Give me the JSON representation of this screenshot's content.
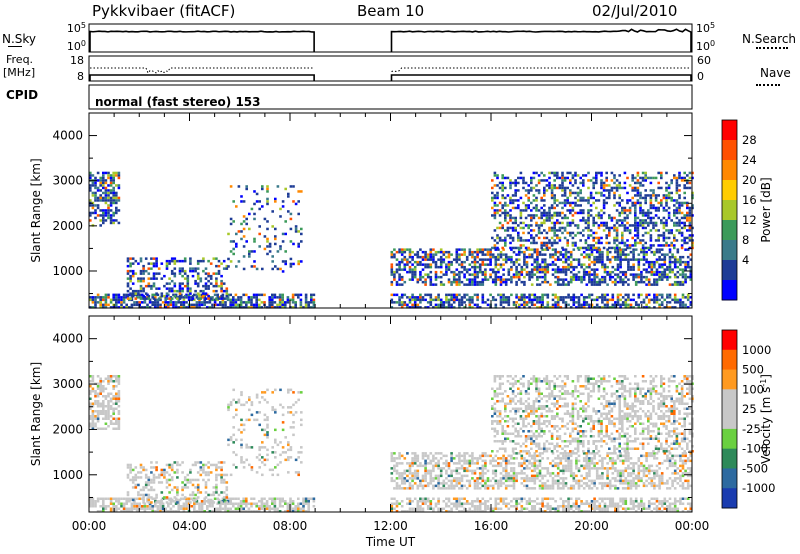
{
  "header": {
    "station": "Pykkvibaer (fitACF)",
    "beam": "Beam 10",
    "date": "02/Jul/2010"
  },
  "left_labels": {
    "nsky": "N.Sky",
    "freq_line1": "Freq.",
    "freq_line2": "[MHz]",
    "cpid": "CPID"
  },
  "right_labels": {
    "nsearch": "N.Search",
    "nave": "Nave"
  },
  "cpid_text": "normal (fast stereo) 153",
  "chart_data": [
    {
      "type": "line",
      "name": "noise-panel",
      "left_ticks": [
        "10^5",
        "10^0"
      ],
      "right_ticks": [
        "10^5",
        "10^0"
      ],
      "segments": [
        {
          "x_start_hours": 0.0,
          "x_end_hours": 9.0
        },
        {
          "x_start_hours": 12.0,
          "x_end_hours": 24.0
        }
      ]
    },
    {
      "type": "line",
      "name": "frequency-nave-panel",
      "left_ticks": [
        "18",
        "8"
      ],
      "right_ticks": [
        "60",
        "0"
      ],
      "segments": [
        {
          "x_start_hours": 0.0,
          "x_end_hours": 9.0
        },
        {
          "x_start_hours": 12.0,
          "x_end_hours": 24.0
        }
      ]
    },
    {
      "type": "heatmap",
      "name": "power-panel",
      "ylabel": "Slant Range [km]",
      "ylim": [
        180,
        4500
      ],
      "y_ticks": [
        "4000",
        "3000",
        "2000",
        "1000"
      ],
      "colorbar_label": "Power [dB]",
      "colorbar_ticks": [
        "28",
        "24",
        "20",
        "16",
        "12",
        "8",
        "4"
      ],
      "colorbar_colors": [
        "#0000ff",
        "#1e3c96",
        "#3a7a8a",
        "#3c9a5a",
        "#a8c82a",
        "#ffcc00",
        "#ff8800",
        "#ff5000",
        "#ff0000"
      ],
      "scatter_regions": [
        {
          "x": [
            0.0,
            1.2
          ],
          "y": [
            2000,
            3200
          ],
          "density": 0.6
        },
        {
          "x": [
            0.0,
            9.0
          ],
          "y": [
            200,
            500
          ],
          "density": 0.7
        },
        {
          "x": [
            1.5,
            5.5
          ],
          "y": [
            400,
            1300
          ],
          "density": 0.4
        },
        {
          "x": [
            5.5,
            8.5
          ],
          "y": [
            1000,
            2900
          ],
          "density": 0.15
        },
        {
          "x": [
            12.0,
            24.0
          ],
          "y": [
            200,
            500
          ],
          "density": 0.6
        },
        {
          "x": [
            12.0,
            24.0
          ],
          "y": [
            700,
            1500
          ],
          "density": 0.55
        },
        {
          "x": [
            16.0,
            24.0
          ],
          "y": [
            1500,
            3200
          ],
          "density": 0.45
        }
      ]
    },
    {
      "type": "heatmap",
      "name": "velocity-panel",
      "ylabel": "Slant Range [km]",
      "ylim": [
        180,
        4500
      ],
      "y_ticks": [
        "4000",
        "3000",
        "2000",
        "1000"
      ],
      "colorbar_label": "Velocity [m s^-1]",
      "colorbar_ticks": [
        "1000",
        "500",
        "100",
        "25",
        "-25",
        "-100",
        "-500",
        "-1000"
      ],
      "colorbar_colors": [
        "#1a3cb0",
        "#2d6aa0",
        "#2e8a5a",
        "#6ad040",
        "#c8c8c8",
        "#c8c8c8",
        "#ff9a20",
        "#ff6a00",
        "#ff0000"
      ],
      "scatter_regions": [
        {
          "x": [
            0.0,
            1.2
          ],
          "y": [
            2000,
            3200
          ],
          "density": 0.6
        },
        {
          "x": [
            0.0,
            9.0
          ],
          "y": [
            200,
            500
          ],
          "density": 0.7
        },
        {
          "x": [
            1.5,
            5.5
          ],
          "y": [
            400,
            1300
          ],
          "density": 0.4
        },
        {
          "x": [
            5.5,
            8.5
          ],
          "y": [
            1000,
            2900
          ],
          "density": 0.15
        },
        {
          "x": [
            12.0,
            24.0
          ],
          "y": [
            200,
            500
          ],
          "density": 0.6
        },
        {
          "x": [
            12.0,
            24.0
          ],
          "y": [
            700,
            1500
          ],
          "density": 0.55
        },
        {
          "x": [
            16.0,
            24.0
          ],
          "y": [
            1500,
            3200
          ],
          "density": 0.45
        }
      ]
    }
  ],
  "x_axis": {
    "ticks": [
      "00:00",
      "04:00",
      "08:00",
      "12:00",
      "16:00",
      "20:00",
      "00:00"
    ],
    "label": "Time UT"
  }
}
